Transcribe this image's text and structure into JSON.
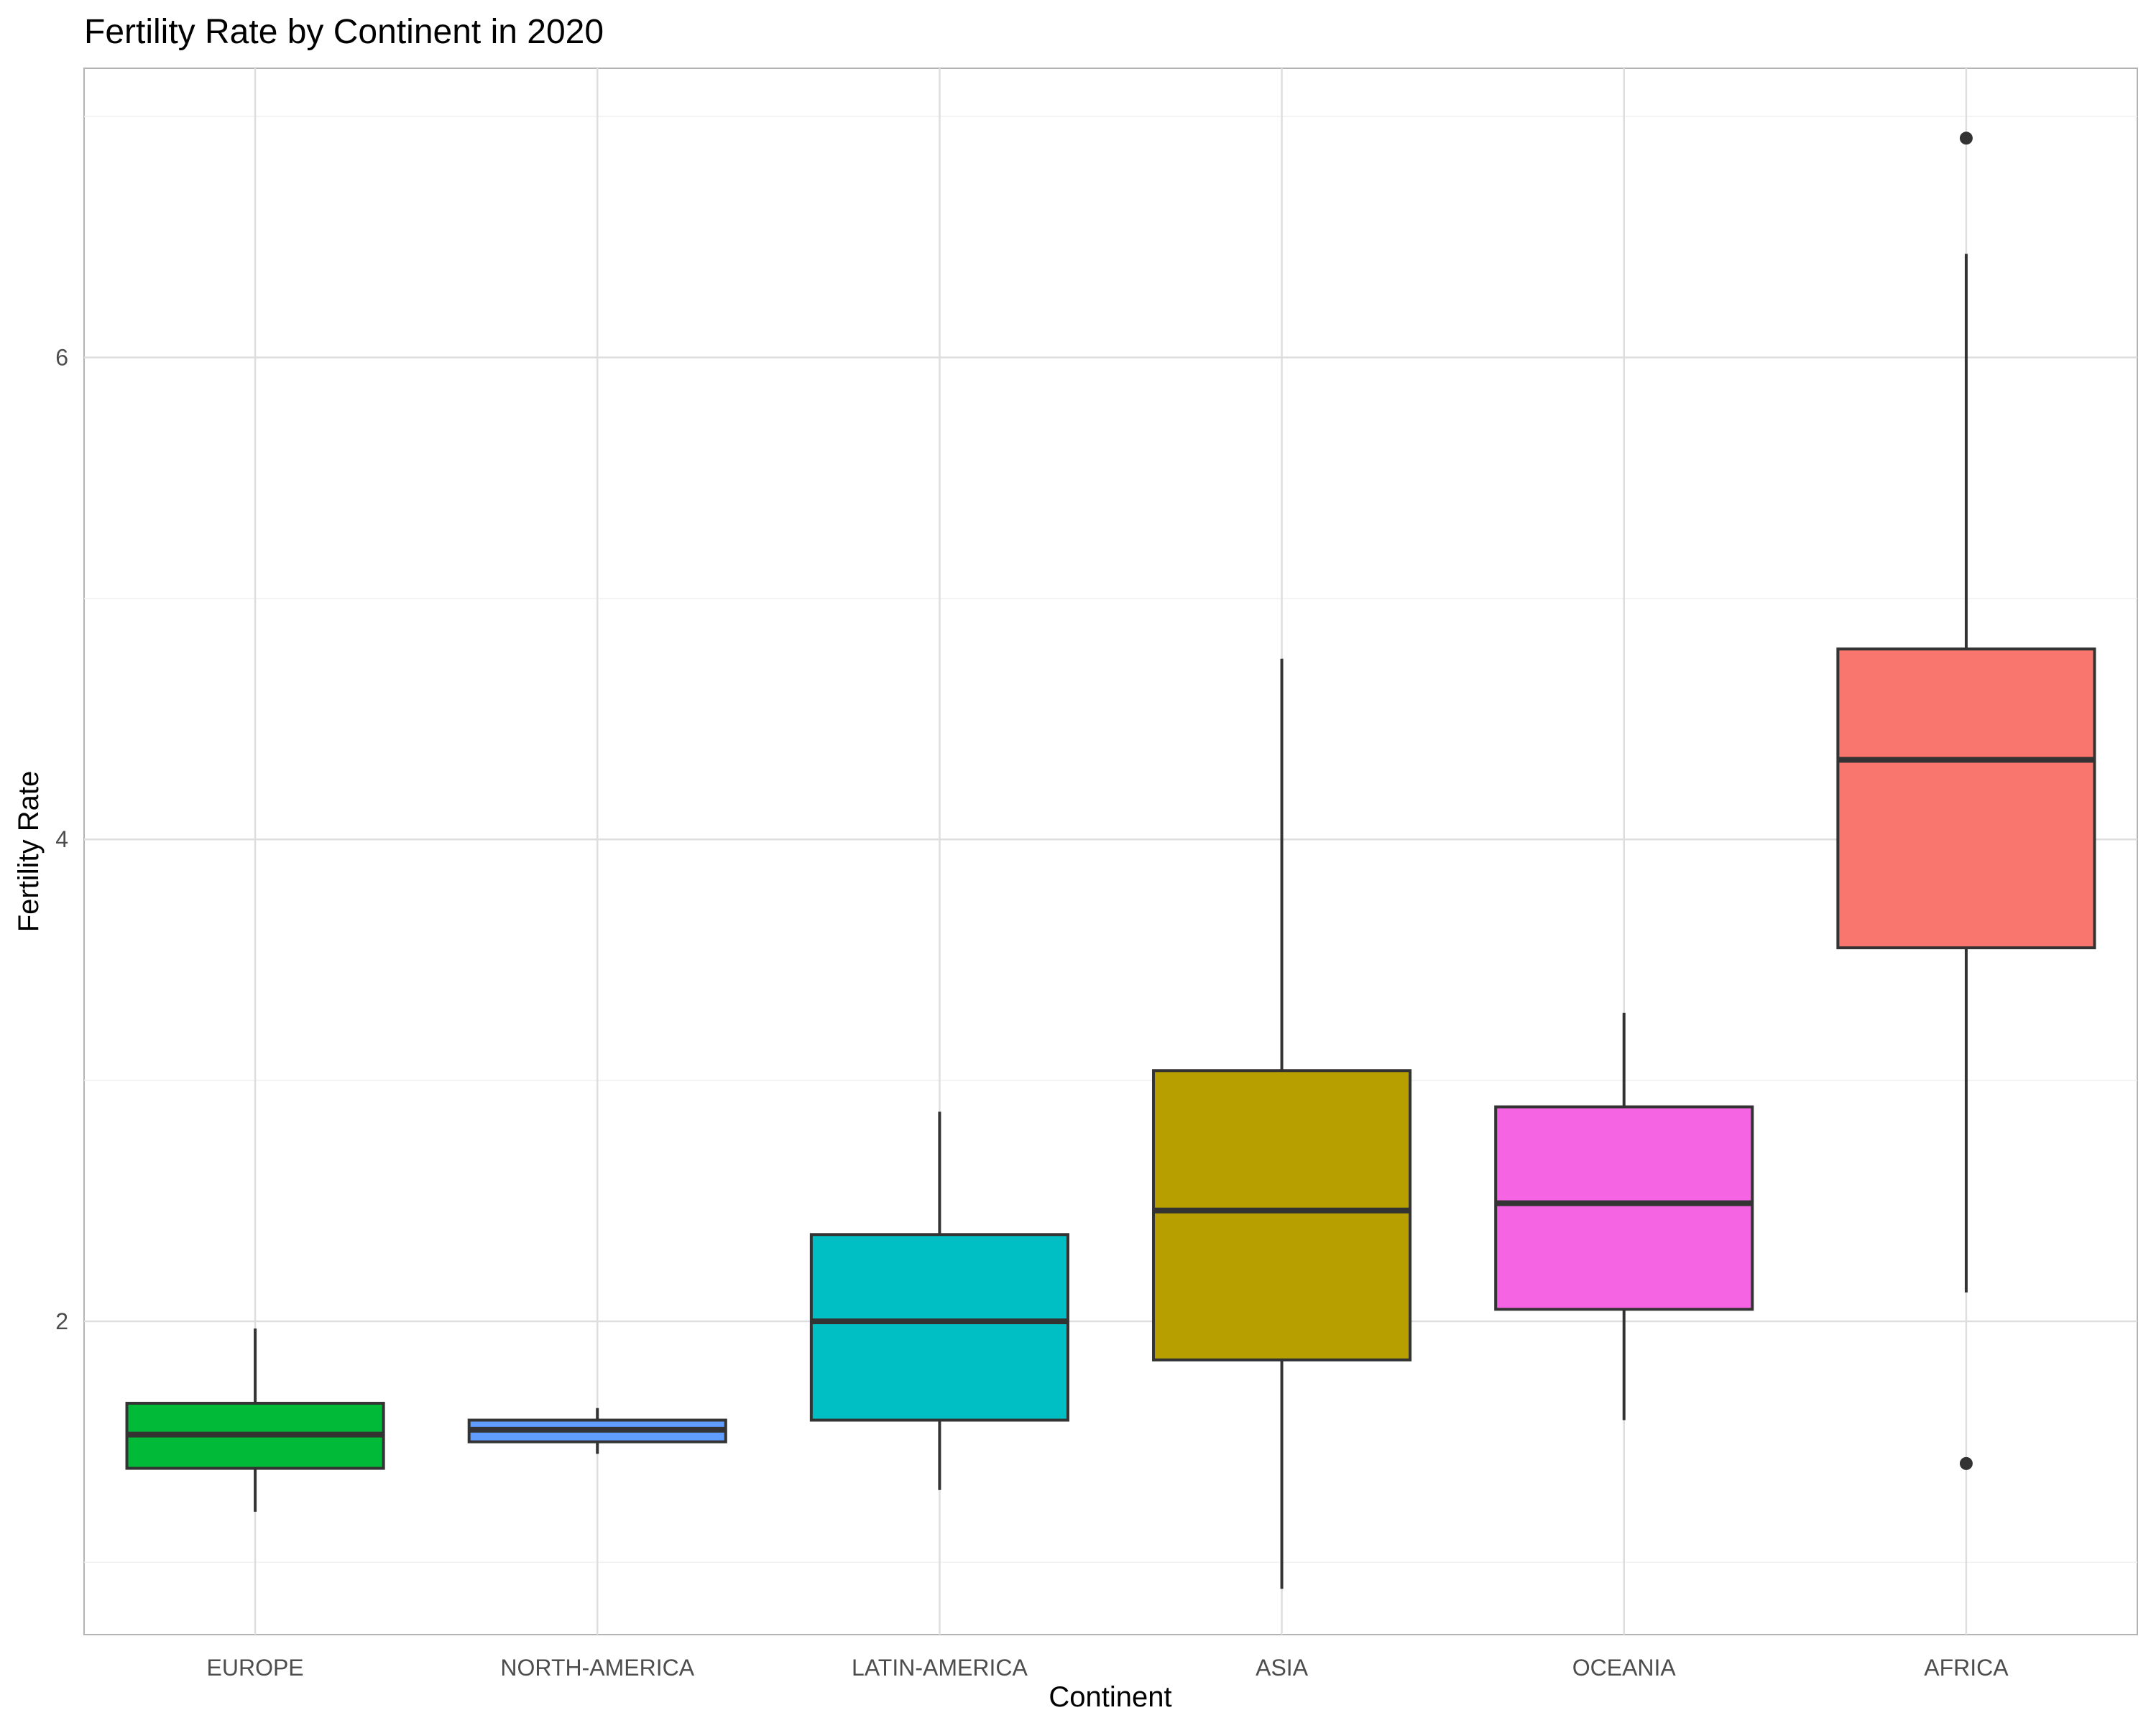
{
  "chart_data": {
    "type": "boxplot",
    "title": "Fertility Rate by Continent in 2020",
    "xlabel": "Continent",
    "ylabel": "Fertility Rate",
    "ylim": [
      0.7,
      7.2
    ],
    "y_major_ticks": [
      2,
      4,
      6
    ],
    "y_minor_ticks": [
      1,
      3,
      5,
      7
    ],
    "grid": true,
    "categories": [
      "EUROPE",
      "NORTH-AMERICA",
      "LATIN-AMERICA",
      "ASIA",
      "OCEANIA",
      "AFRICA"
    ],
    "boxes": [
      {
        "category": "EUROPE",
        "color": "#00BA38",
        "whisker_low": 1.21,
        "q1": 1.39,
        "median": 1.53,
        "q3": 1.66,
        "whisker_high": 1.97,
        "outliers": []
      },
      {
        "category": "NORTH-AMERICA",
        "color": "#619CFF",
        "whisker_low": 1.45,
        "q1": 1.5,
        "median": 1.55,
        "q3": 1.59,
        "whisker_high": 1.64,
        "outliers": []
      },
      {
        "category": "LATIN-AMERICA",
        "color": "#00BFC4",
        "whisker_low": 1.3,
        "q1": 1.59,
        "median": 2.0,
        "q3": 2.36,
        "whisker_high": 2.87,
        "outliers": []
      },
      {
        "category": "ASIA",
        "color": "#B79F00",
        "whisker_low": 0.89,
        "q1": 1.84,
        "median": 2.46,
        "q3": 3.04,
        "whisker_high": 4.75,
        "outliers": []
      },
      {
        "category": "OCEANIA",
        "color": "#F564E3",
        "whisker_low": 1.59,
        "q1": 2.05,
        "median": 2.49,
        "q3": 2.89,
        "whisker_high": 3.28,
        "outliers": []
      },
      {
        "category": "AFRICA",
        "color": "#F8766D",
        "whisker_low": 2.12,
        "q1": 3.55,
        "median": 4.33,
        "q3": 4.79,
        "whisker_high": 6.43,
        "outliers": [
          1.41,
          6.91
        ]
      }
    ]
  }
}
